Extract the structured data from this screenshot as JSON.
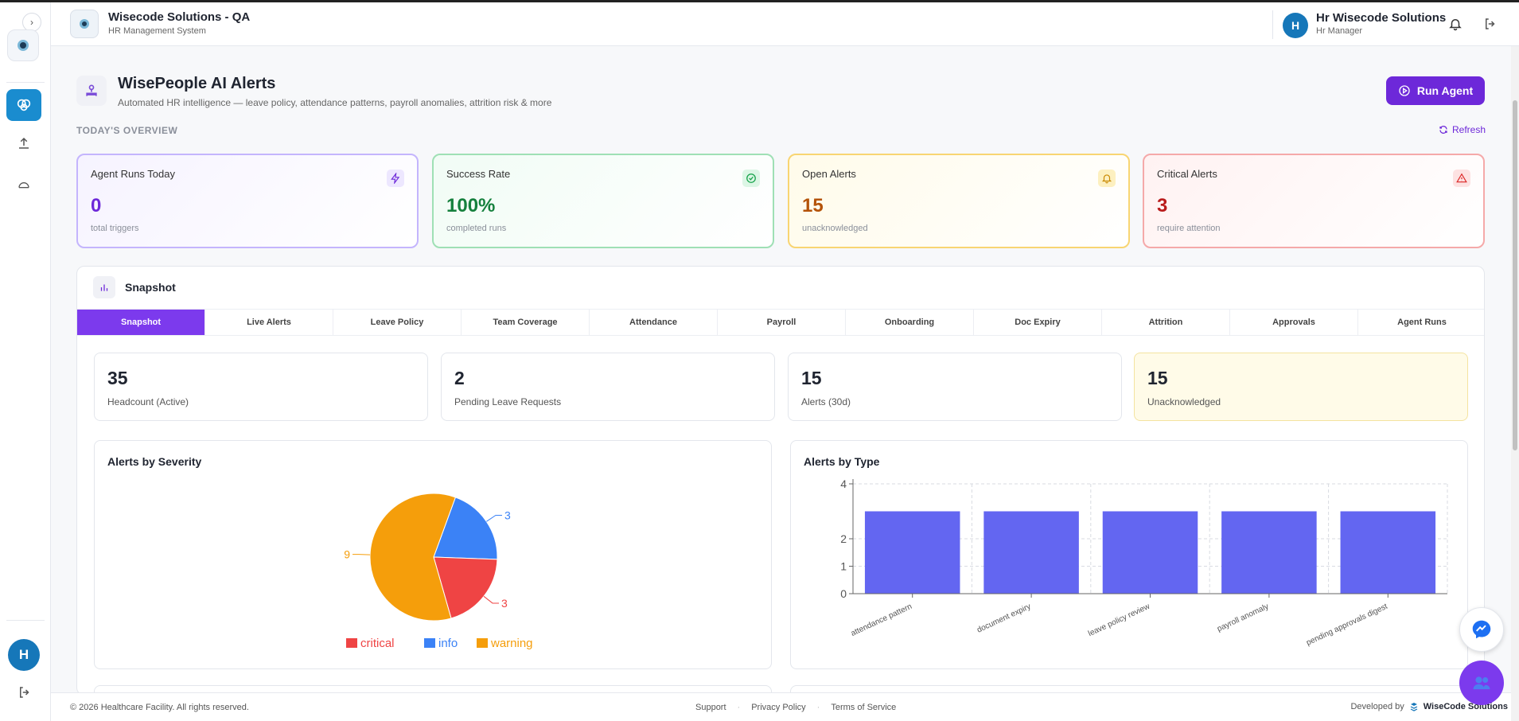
{
  "header": {
    "title": "Wisecode Solutions - QA",
    "subtitle": "HR Management System",
    "avatar_initial": "H",
    "user_name": "Hr Wisecode Solutions",
    "user_role": "Hr Manager"
  },
  "sidebar": {
    "toggle_glyph": "›",
    "avatar_initial": "H"
  },
  "page": {
    "title": "WisePeople AI Alerts",
    "subtitle": "Automated HR intelligence — leave policy, attendance patterns, payroll anomalies, attrition risk & more",
    "run_button": "Run Agent",
    "overview_label": "TODAY'S OVERVIEW",
    "refresh_label": "Refresh"
  },
  "kpis": [
    {
      "label": "Agent Runs Today",
      "value": "0",
      "sub": "total triggers"
    },
    {
      "label": "Success Rate",
      "value": "100%",
      "sub": "completed runs"
    },
    {
      "label": "Open Alerts",
      "value": "15",
      "sub": "unacknowledged"
    },
    {
      "label": "Critical Alerts",
      "value": "3",
      "sub": "require attention"
    }
  ],
  "snapshot": {
    "title": "Snapshot",
    "tabs": [
      "Snapshot",
      "Live Alerts",
      "Leave Policy",
      "Team Coverage",
      "Attendance",
      "Payroll",
      "Onboarding",
      "Doc Expiry",
      "Attrition",
      "Approvals",
      "Agent Runs"
    ],
    "active_tab": "Snapshot",
    "stats": [
      {
        "value": "35",
        "caption": "Headcount (Active)"
      },
      {
        "value": "2",
        "caption": "Pending Leave Requests"
      },
      {
        "value": "15",
        "caption": "Alerts (30d)"
      },
      {
        "value": "15",
        "caption": "Unacknowledged"
      }
    ]
  },
  "colors": {
    "accent": "#6d28d9",
    "critical": "#ef4444",
    "info": "#3b82f6",
    "warning": "#f59e0b",
    "bar": "#6366f1"
  },
  "chart_data": [
    {
      "type": "pie",
      "title": "Alerts by Severity",
      "categories": [
        "critical",
        "info",
        "warning"
      ],
      "values": [
        3,
        3,
        9
      ],
      "legend": "bottom"
    },
    {
      "type": "bar",
      "title": "Alerts by Type",
      "categories": [
        "attendance pattern",
        "document expiry",
        "leave policy review",
        "payroll anomaly",
        "pending approvals digest"
      ],
      "values": [
        3,
        3,
        3,
        3,
        3
      ],
      "ylim": [
        0,
        4
      ],
      "yticks": [
        0,
        1,
        2,
        4
      ],
      "grid": true
    }
  ],
  "footer": {
    "copyright": "© 2026 Healthcare Facility. All rights reserved.",
    "links": [
      "Support",
      "Privacy Policy",
      "Terms of Service"
    ],
    "developed_by": "Developed by",
    "brand": "WiseCode Solutions"
  }
}
